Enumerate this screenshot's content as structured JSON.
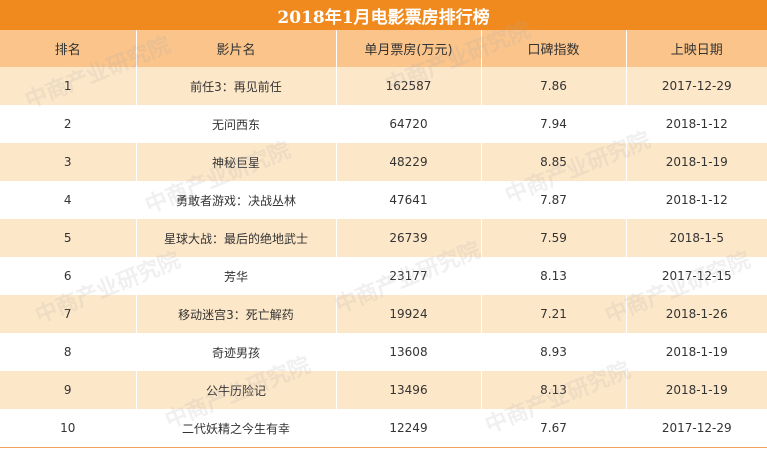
{
  "title": "2018年1月电影票房排行榜",
  "table": {
    "headers": [
      "排名",
      "影片名",
      "单月票房(万元)",
      "口碑指数",
      "上映日期"
    ],
    "rows": [
      [
        "1",
        "前任3：再见前任",
        "162587",
        "7.86",
        "2017-12-29"
      ],
      [
        "2",
        "无问西东",
        "64720",
        "7.94",
        "2018-1-12"
      ],
      [
        "3",
        "神秘巨星",
        "48229",
        "8.85",
        "2018-1-19"
      ],
      [
        "4",
        "勇敢者游戏：决战丛林",
        "47641",
        "7.87",
        "2018-1-12"
      ],
      [
        "5",
        "星球大战：最后的绝地武士",
        "26739",
        "7.59",
        "2018-1-5"
      ],
      [
        "6",
        "芳华",
        "23177",
        "8.13",
        "2017-12-15"
      ],
      [
        "7",
        "移动迷宫3：死亡解药",
        "19924",
        "7.21",
        "2018-1-26"
      ],
      [
        "8",
        "奇迹男孩",
        "13608",
        "8.93",
        "2018-1-19"
      ],
      [
        "9",
        "公牛历险记",
        "13496",
        "8.13",
        "2018-1-19"
      ],
      [
        "10",
        "二代妖精之今生有幸",
        "12249",
        "7.67",
        "2017-12-29"
      ]
    ]
  },
  "watermark": "中商产业研究院"
}
